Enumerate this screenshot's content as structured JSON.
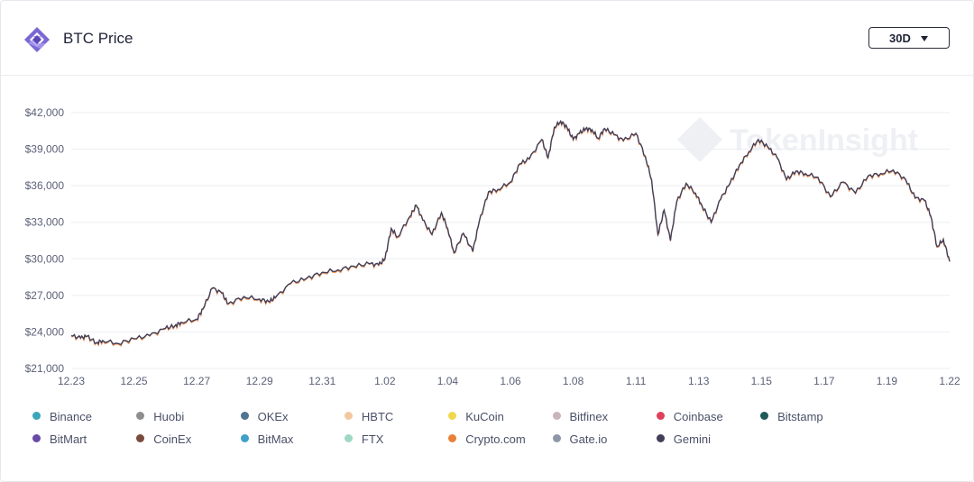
{
  "header": {
    "title": "BTC Price",
    "range": "30D",
    "logo_icon": "tokeninsight-logo-icon",
    "caret_icon": "caret-down-icon"
  },
  "watermark": "TokenInsight",
  "legend": [
    {
      "name": "Binance",
      "color": "#3aa6b9"
    },
    {
      "name": "Huobi",
      "color": "#8e8e8e"
    },
    {
      "name": "OKEx",
      "color": "#4f7590"
    },
    {
      "name": "HBTC",
      "color": "#f2c8a0"
    },
    {
      "name": "KuCoin",
      "color": "#f0d84c"
    },
    {
      "name": "Bitfinex",
      "color": "#c9b4bb"
    },
    {
      "name": "Coinbase",
      "color": "#e0405a"
    },
    {
      "name": "Bitstamp",
      "color": "#1f5a58"
    },
    {
      "name": "BitMart",
      "color": "#6a4aa8"
    },
    {
      "name": "CoinEx",
      "color": "#7b4a3e"
    },
    {
      "name": "BitMax",
      "color": "#3fa0c8"
    },
    {
      "name": "FTX",
      "color": "#9fd8c2"
    },
    {
      "name": "Crypto.com",
      "color": "#e8803a"
    },
    {
      "name": "Gate.io",
      "color": "#8d97a8"
    },
    {
      "name": "Gemini",
      "color": "#433e58"
    }
  ],
  "chart_data": {
    "type": "line",
    "title": "BTC Price",
    "xlabel": "",
    "ylabel": "",
    "ylim": [
      21000,
      42000
    ],
    "y_ticks": [
      21000,
      24000,
      27000,
      30000,
      33000,
      36000,
      39000,
      42000
    ],
    "y_tick_labels": [
      "$21,000",
      "$24,000",
      "$27,000",
      "$30,000",
      "$33,000",
      "$36,000",
      "$39,000",
      "$42,000"
    ],
    "x_tick_labels": [
      "12.23",
      "12.25",
      "12.27",
      "12.29",
      "12.31",
      "1.02",
      "1.04",
      "1.06",
      "1.08",
      "1.11",
      "1.13",
      "1.15",
      "1.17",
      "1.19",
      "1.22"
    ],
    "x_tick_days": [
      0,
      2,
      4,
      6,
      8,
      10,
      12,
      14,
      16,
      18,
      20,
      22,
      24,
      26,
      28
    ],
    "grid": true,
    "legend_position": "bottom",
    "series": [
      {
        "name": "Gemini",
        "color": "#433e58",
        "highlight": "#e8803a",
        "x": [
          0,
          0.3,
          0.5,
          0.8,
          1,
          1.5,
          2,
          2.5,
          3,
          3.3,
          3.5,
          4,
          4.2,
          4.5,
          4.8,
          5,
          5.5,
          6,
          6.3,
          6.5,
          7,
          7.5,
          8,
          8.5,
          9,
          9.5,
          9.8,
          10,
          10.2,
          10.4,
          10.8,
          11,
          11.2,
          11.5,
          11.8,
          12,
          12.2,
          12.5,
          12.8,
          13,
          13.3,
          13.6,
          14,
          14.3,
          14.6,
          15,
          15.2,
          15.4,
          15.6,
          15.8,
          16,
          16.2,
          16.4,
          16.6,
          16.8,
          17,
          17.3,
          17.6,
          18,
          18.3,
          18.5,
          18.7,
          18.9,
          19.1,
          19.3,
          19.6,
          19.9,
          20.1,
          20.4,
          20.7,
          21,
          21.3,
          21.6,
          21.9,
          22.2,
          22.5,
          22.8,
          23.1,
          23.4,
          23.8,
          24.2,
          24.6,
          25,
          25.4,
          25.8,
          26.2,
          26.6,
          26.9,
          27.2,
          27.4,
          27.6,
          27.8,
          28
        ],
        "y": [
          23700,
          23500,
          23650,
          23100,
          23300,
          23050,
          23450,
          23700,
          24300,
          24500,
          24800,
          25050,
          25900,
          27600,
          27200,
          26300,
          26900,
          26700,
          26500,
          26800,
          28000,
          28400,
          28900,
          29100,
          29400,
          29600,
          29500,
          30000,
          32500,
          31800,
          33500,
          34400,
          33200,
          32000,
          33800,
          32500,
          30500,
          32100,
          30600,
          33000,
          35500,
          35700,
          36300,
          37800,
          38200,
          39800,
          38300,
          40800,
          41300,
          40800,
          39800,
          40300,
          40700,
          40600,
          39900,
          40700,
          40200,
          39700,
          40300,
          38400,
          36500,
          32000,
          34000,
          31500,
          34700,
          36200,
          35400,
          34400,
          33000,
          34900,
          36200,
          37700,
          38800,
          39800,
          39200,
          38300,
          36500,
          37200,
          37000,
          36700,
          35100,
          36300,
          35400,
          36800,
          37000,
          37300,
          36500,
          35000,
          34800,
          33500,
          31000,
          31600,
          29800
        ]
      }
    ]
  }
}
